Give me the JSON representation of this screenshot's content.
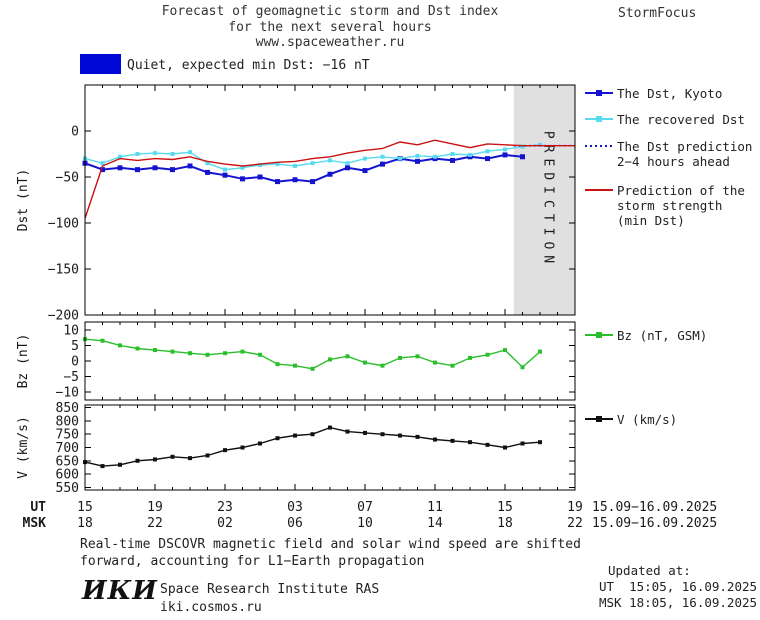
{
  "header": {
    "title_lines": [
      "Forecast of geomagnetic storm and Dst index",
      "for the next several hours",
      "www.spaceweather.ru"
    ],
    "brand": "StormFocus"
  },
  "status": {
    "label": "Quiet, expected min Dst: −16 nT",
    "swatch_color": "#0008d7"
  },
  "colors": {
    "band": "#e0e0e0",
    "band_text": "#b2b2b2"
  },
  "legend": [
    {
      "id": "dst-kyoto",
      "label": "The Dst, Kyoto",
      "color": "#1414cf",
      "style": "solid",
      "marker": "square"
    },
    {
      "id": "recovered-dst",
      "label": "The recovered Dst",
      "color": "#58dbee",
      "style": "solid",
      "marker": "square"
    },
    {
      "id": "dst-prediction",
      "label": "The Dst prediction\n2−4 hours ahead",
      "color": "#1414cf",
      "style": "dotted",
      "marker": "none"
    },
    {
      "id": "storm-strength",
      "label": "Prediction of the\nstorm strength\n(min Dst)",
      "color": "#cc1111",
      "style": "solid",
      "marker": "none"
    },
    {
      "id": "bz",
      "label": "Bz (nT, GSM)",
      "color": "#2abf2a",
      "style": "solid",
      "marker": "square"
    },
    {
      "id": "v",
      "label": "V (km/s)",
      "color": "#111111",
      "style": "solid",
      "marker": "square"
    }
  ],
  "axis": {
    "x_range_hours": [
      0,
      28
    ],
    "tick_hours": [
      0,
      4,
      8,
      12,
      16,
      20,
      24,
      28
    ],
    "ut_label": "UT",
    "msk_label": "MSK",
    "ut_ticks": [
      "15",
      "19",
      "23",
      "03",
      "07",
      "11",
      "15",
      "19"
    ],
    "msk_ticks": [
      "18",
      "22",
      "02",
      "06",
      "10",
      "14",
      "18",
      "22"
    ],
    "ut_date": "15.09−16.09.2025",
    "msk_date": "15.09−16.09.2025"
  },
  "chart_data": [
    {
      "type": "line",
      "title": "Dst index, recovered Dst and storm strength prediction",
      "ylabel": "Dst (nT)",
      "ylim": [
        -200,
        50
      ],
      "yticks": [
        0,
        -50,
        -100,
        -150,
        -200
      ],
      "prediction_band_start": 24.5,
      "prediction_label": "PREDICTION",
      "series": [
        {
          "name": "The Dst, Kyoto",
          "color": "#1414cf",
          "style": "solid",
          "marker": "square",
          "width": 2,
          "x": [
            0,
            1,
            2,
            3,
            4,
            5,
            6,
            7,
            8,
            9,
            10,
            11,
            12,
            13,
            14,
            15,
            16,
            17,
            18,
            19,
            20,
            21,
            22,
            23,
            24,
            25
          ],
          "values": [
            -35,
            -42,
            -40,
            -42,
            -40,
            -42,
            -38,
            -45,
            -48,
            -52,
            -50,
            -55,
            -53,
            -55,
            -47,
            -40,
            -43,
            -36,
            -30,
            -33,
            -30,
            -32,
            -28,
            -30,
            -26,
            -28
          ]
        },
        {
          "name": "The recovered Dst",
          "color": "#58dbee",
          "style": "solid",
          "marker": "square",
          "width": 1.4,
          "x": [
            0,
            1,
            2,
            3,
            4,
            5,
            6,
            7,
            8,
            9,
            10,
            11,
            12,
            13,
            14,
            15,
            16,
            17,
            18,
            19,
            20,
            21,
            22,
            23,
            24,
            25,
            26
          ],
          "values": [
            -30,
            -35,
            -28,
            -25,
            -24,
            -25,
            -23,
            -35,
            -42,
            -40,
            -37,
            -36,
            -38,
            -35,
            -32,
            -35,
            -30,
            -28,
            -30,
            -27,
            -28,
            -25,
            -26,
            -22,
            -20,
            -17,
            -15
          ]
        },
        {
          "name": "The Dst prediction 2−4 hours ahead",
          "color": "#1414cf",
          "style": "dotted",
          "marker": "none",
          "width": 1.6,
          "x": [
            24.5,
            28
          ],
          "values": [
            -16,
            -16
          ]
        },
        {
          "name": "Prediction of the storm strength (min Dst)",
          "color": "#cc1111",
          "style": "solid",
          "marker": "none",
          "width": 1.4,
          "x": [
            0,
            1,
            2,
            3,
            4,
            5,
            6,
            7,
            8,
            9,
            10,
            11,
            12,
            13,
            14,
            15,
            16,
            17,
            18,
            19,
            20,
            21,
            22,
            23,
            24,
            25,
            26,
            27,
            28
          ],
          "values": [
            -95,
            -38,
            -30,
            -32,
            -30,
            -31,
            -28,
            -33,
            -36,
            -38,
            -36,
            -34,
            -33,
            -30,
            -28,
            -24,
            -21,
            -19,
            -12,
            -15,
            -10,
            -14,
            -18,
            -14,
            -15,
            -16,
            -16,
            -16,
            -16
          ]
        }
      ]
    },
    {
      "type": "line",
      "title": "Interplanetary magnetic field Bz",
      "ylabel": "Bz (nT)",
      "ylim": [
        -12.5,
        12.5
      ],
      "yticks": [
        10,
        5,
        0,
        -5,
        -10
      ],
      "series": [
        {
          "name": "Bz (nT, GSM)",
          "color": "#2abf2a",
          "style": "solid",
          "marker": "square",
          "width": 1.4,
          "x": [
            0,
            1,
            2,
            3,
            4,
            5,
            6,
            7,
            8,
            9,
            10,
            11,
            12,
            13,
            14,
            15,
            16,
            17,
            18,
            19,
            20,
            21,
            22,
            23,
            24,
            25,
            26
          ],
          "values": [
            7,
            6.5,
            5,
            4,
            3.5,
            3,
            2.5,
            2,
            2.5,
            3,
            2,
            -1,
            -1.5,
            -2.5,
            0.5,
            1.5,
            -0.5,
            -1.5,
            1,
            1.5,
            -0.5,
            -1.5,
            1,
            2,
            3.5,
            -2,
            3
          ]
        }
      ]
    },
    {
      "type": "line",
      "title": "Solar wind speed",
      "ylabel": "V (km/s)",
      "ylim": [
        540,
        860
      ],
      "yticks": [
        850,
        800,
        750,
        700,
        650,
        600,
        550
      ],
      "series": [
        {
          "name": "V (km/s)",
          "color": "#111111",
          "style": "solid",
          "marker": "square",
          "width": 1.4,
          "x": [
            0,
            1,
            2,
            3,
            4,
            5,
            6,
            7,
            8,
            9,
            10,
            11,
            12,
            13,
            14,
            15,
            16,
            17,
            18,
            19,
            20,
            21,
            22,
            23,
            24,
            25,
            26
          ],
          "values": [
            645,
            630,
            635,
            650,
            655,
            665,
            660,
            670,
            690,
            700,
            715,
            735,
            745,
            750,
            775,
            760,
            755,
            750,
            745,
            740,
            730,
            725,
            720,
            710,
            700,
            715,
            720
          ]
        }
      ]
    }
  ],
  "footer": {
    "note": "Real-time DSCOVR magnetic field and solar wind speed are shifted\nforward, accounting for L1−Earth propagation",
    "updated_label": "Updated at:",
    "updated_ut": "UT  15:05, 16.09.2025",
    "updated_msk": "MSK 18:05, 16.09.2025",
    "logo": "ИКИ",
    "institute": "Space Research Institute RAS",
    "site": "iki.cosmos.ru"
  }
}
